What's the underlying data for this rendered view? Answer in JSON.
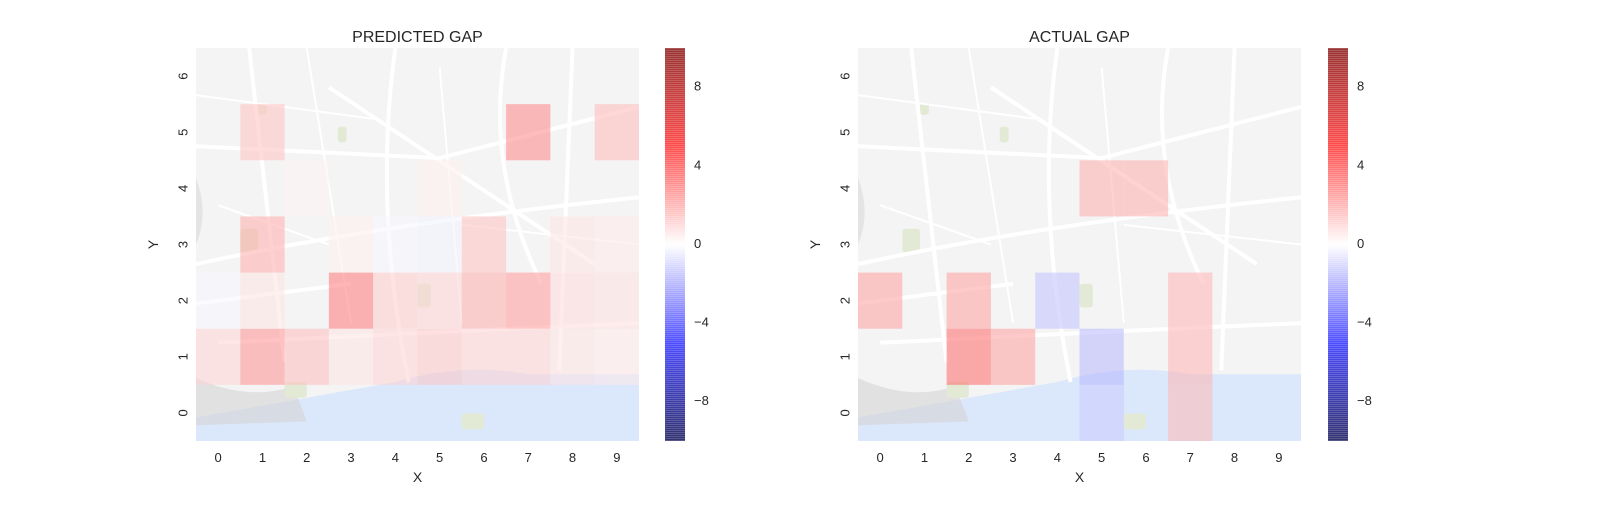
{
  "chart_data": [
    {
      "type": "heatmap",
      "title": "PREDICTED GAP",
      "xlabel": "X",
      "ylabel": "Y",
      "x_ticks": [
        "0",
        "1",
        "2",
        "3",
        "4",
        "5",
        "6",
        "7",
        "8",
        "9"
      ],
      "y_ticks": [
        "0",
        "1",
        "2",
        "3",
        "4",
        "5",
        "6"
      ],
      "colorbar_ticks": [
        "8",
        "4",
        "0",
        "−4",
        "−8"
      ],
      "colorbar_range": [
        -10,
        10
      ],
      "colormap": "seismic",
      "background": "map",
      "cells": [
        {
          "x": 1,
          "y": 1,
          "value": 2.5
        },
        {
          "x": 2,
          "y": 1,
          "value": 1.5
        },
        {
          "x": 0,
          "y": 1,
          "value": 1.0
        },
        {
          "x": 3,
          "y": 1,
          "value": 0.6
        },
        {
          "x": 4,
          "y": 1,
          "value": 1.0
        },
        {
          "x": 5,
          "y": 1,
          "value": 1.3
        },
        {
          "x": 6,
          "y": 1,
          "value": 1.0
        },
        {
          "x": 7,
          "y": 1,
          "value": 1.0
        },
        {
          "x": 8,
          "y": 1,
          "value": 0.6
        },
        {
          "x": 9,
          "y": 1,
          "value": 0.5
        },
        {
          "x": 3,
          "y": 2,
          "value": 3.0
        },
        {
          "x": 4,
          "y": 2,
          "value": 1.2
        },
        {
          "x": 5,
          "y": 2,
          "value": 1.0
        },
        {
          "x": 6,
          "y": 2,
          "value": 1.8
        },
        {
          "x": 7,
          "y": 2,
          "value": 2.3
        },
        {
          "x": 8,
          "y": 2,
          "value": 0.8
        },
        {
          "x": 9,
          "y": 2,
          "value": 0.7
        },
        {
          "x": 1,
          "y": 2,
          "value": 0.6
        },
        {
          "x": 0,
          "y": 2,
          "value": -0.2
        },
        {
          "x": 1,
          "y": 3,
          "value": 1.9
        },
        {
          "x": 6,
          "y": 3,
          "value": 1.4
        },
        {
          "x": 4,
          "y": 3,
          "value": -0.2
        },
        {
          "x": 5,
          "y": 3,
          "value": -0.3
        },
        {
          "x": 8,
          "y": 3,
          "value": 0.6
        },
        {
          "x": 9,
          "y": 3,
          "value": 0.5
        },
        {
          "x": 1,
          "y": 5,
          "value": 1.4
        },
        {
          "x": 7,
          "y": 5,
          "value": 2.7
        },
        {
          "x": 9,
          "y": 5,
          "value": 1.6
        },
        {
          "x": 3,
          "y": 3,
          "value": 0.4
        },
        {
          "x": 2,
          "y": 4,
          "value": 0.3
        },
        {
          "x": 5,
          "y": 4,
          "value": 0.4
        }
      ]
    },
    {
      "type": "heatmap",
      "title": "ACTUAL GAP",
      "xlabel": "X",
      "ylabel": "Y",
      "x_ticks": [
        "0",
        "1",
        "2",
        "3",
        "4",
        "5",
        "6",
        "7",
        "8",
        "9"
      ],
      "y_ticks": [
        "0",
        "1",
        "2",
        "3",
        "4",
        "5",
        "6"
      ],
      "colorbar_ticks": [
        "8",
        "4",
        "0",
        "−4",
        "−8"
      ],
      "colorbar_range": [
        -10,
        10
      ],
      "colormap": "seismic",
      "background": "map",
      "cells": [
        {
          "x": 0,
          "y": 2,
          "value": 2.2
        },
        {
          "x": 2,
          "y": 2,
          "value": 2.2
        },
        {
          "x": 2,
          "y": 1,
          "value": 3.4
        },
        {
          "x": 3,
          "y": 1,
          "value": 2.2
        },
        {
          "x": 4,
          "y": 2,
          "value": -1.4
        },
        {
          "x": 5,
          "y": 1,
          "value": -1.6
        },
        {
          "x": 5,
          "y": 0,
          "value": -1.2
        },
        {
          "x": 5,
          "y": 4,
          "value": 1.8
        },
        {
          "x": 6,
          "y": 4,
          "value": 1.8
        },
        {
          "x": 7,
          "y": 2,
          "value": 1.7
        },
        {
          "x": 7,
          "y": 1,
          "value": 1.7
        },
        {
          "x": 7,
          "y": 0,
          "value": 1.6
        }
      ]
    }
  ]
}
